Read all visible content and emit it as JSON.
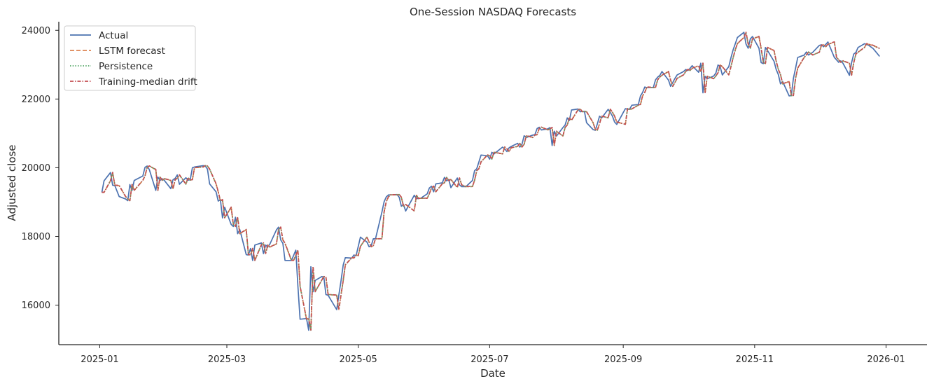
{
  "chart_data": {
    "type": "line",
    "title": "One-Session NASDAQ Forecasts",
    "xlabel": "Date",
    "ylabel": "Adjusted close",
    "x_ticks": [
      "2025-01",
      "2025-03",
      "2025-05",
      "2025-07",
      "2025-09",
      "2025-11",
      "2026-01"
    ],
    "y_ticks": [
      "16000",
      "18000",
      "20000",
      "22000",
      "24000"
    ],
    "xlim": [
      "2024-12-13",
      "2026-01-20"
    ],
    "ylim": [
      14850,
      24250
    ],
    "grid": false,
    "legend_position": "top-left",
    "series": [
      {
        "name": "Actual",
        "color": "#4c72b0",
        "dash": "solid"
      },
      {
        "name": "LSTM forecast",
        "color": "#dd8452",
        "dash": "dashed"
      },
      {
        "name": "Persistence",
        "color": "#55a868",
        "dash": "dotted"
      },
      {
        "name": "Training-median drift",
        "color": "#c44e52",
        "dash": "dashdot"
      }
    ],
    "x": [
      "2025-01-02",
      "2025-01-03",
      "2025-01-06",
      "2025-01-07",
      "2025-01-08",
      "2025-01-10",
      "2025-01-13",
      "2025-01-14",
      "2025-01-15",
      "2025-01-16",
      "2025-01-17",
      "2025-01-21",
      "2025-01-22",
      "2025-01-23",
      "2025-01-24",
      "2025-01-27",
      "2025-01-28",
      "2025-01-29",
      "2025-01-30",
      "2025-01-31",
      "2025-02-03",
      "2025-02-04",
      "2025-02-05",
      "2025-02-06",
      "2025-02-07",
      "2025-02-10",
      "2025-02-11",
      "2025-02-12",
      "2025-02-13",
      "2025-02-14",
      "2025-02-18",
      "2025-02-19",
      "2025-02-20",
      "2025-02-21",
      "2025-02-24",
      "2025-02-25",
      "2025-02-26",
      "2025-02-27",
      "2025-02-28",
      "2025-03-03",
      "2025-03-04",
      "2025-03-05",
      "2025-03-06",
      "2025-03-07",
      "2025-03-10",
      "2025-03-11",
      "2025-03-12",
      "2025-03-13",
      "2025-03-14",
      "2025-03-17",
      "2025-03-18",
      "2025-03-19",
      "2025-03-20",
      "2025-03-21",
      "2025-03-24",
      "2025-03-25",
      "2025-03-26",
      "2025-03-27",
      "2025-03-28",
      "2025-03-31",
      "2025-04-01",
      "2025-04-02",
      "2025-04-03",
      "2025-04-04",
      "2025-04-07",
      "2025-04-08",
      "2025-04-09",
      "2025-04-10",
      "2025-04-11",
      "2025-04-14",
      "2025-04-15",
      "2025-04-16",
      "2025-04-17",
      "2025-04-21",
      "2025-04-22",
      "2025-04-23",
      "2025-04-24",
      "2025-04-25",
      "2025-04-28",
      "2025-04-29",
      "2025-04-30",
      "2025-05-01",
      "2025-05-02",
      "2025-05-05",
      "2025-05-06",
      "2025-05-07",
      "2025-05-08",
      "2025-05-09",
      "2025-05-12",
      "2025-05-13",
      "2025-05-14",
      "2025-05-15",
      "2025-05-16",
      "2025-05-19",
      "2025-05-20",
      "2025-05-21",
      "2025-05-22",
      "2025-05-23",
      "2025-05-27",
      "2025-05-28",
      "2025-05-29",
      "2025-05-30",
      "2025-06-02",
      "2025-06-03",
      "2025-06-04",
      "2025-06-05",
      "2025-06-06",
      "2025-06-09",
      "2025-06-10",
      "2025-06-11",
      "2025-06-12",
      "2025-06-13",
      "2025-06-16",
      "2025-06-17",
      "2025-06-18",
      "2025-06-20",
      "2025-06-23",
      "2025-06-24",
      "2025-06-25",
      "2025-06-26",
      "2025-06-27",
      "2025-06-30",
      "2025-07-01",
      "2025-07-02",
      "2025-07-03",
      "2025-07-07",
      "2025-07-08",
      "2025-07-09",
      "2025-07-10",
      "2025-07-11",
      "2025-07-14",
      "2025-07-15",
      "2025-07-16",
      "2025-07-17",
      "2025-07-18",
      "2025-07-21",
      "2025-07-22",
      "2025-07-23",
      "2025-07-24",
      "2025-07-25",
      "2025-07-28",
      "2025-07-29",
      "2025-07-30",
      "2025-07-31",
      "2025-08-01",
      "2025-08-04",
      "2025-08-05",
      "2025-08-06",
      "2025-08-07",
      "2025-08-08",
      "2025-08-11",
      "2025-08-12",
      "2025-08-13",
      "2025-08-14",
      "2025-08-15",
      "2025-08-18",
      "2025-08-19",
      "2025-08-20",
      "2025-08-21",
      "2025-08-22",
      "2025-08-25",
      "2025-08-26",
      "2025-08-27",
      "2025-08-28",
      "2025-08-29",
      "2025-09-02",
      "2025-09-03",
      "2025-09-04",
      "2025-09-05",
      "2025-09-08",
      "2025-09-09",
      "2025-09-10",
      "2025-09-11",
      "2025-09-12",
      "2025-09-15",
      "2025-09-16",
      "2025-09-17",
      "2025-09-18",
      "2025-09-19",
      "2025-09-22",
      "2025-09-23",
      "2025-09-24",
      "2025-09-25",
      "2025-09-26",
      "2025-09-29",
      "2025-09-30",
      "2025-10-01",
      "2025-10-02",
      "2025-10-03",
      "2025-10-06",
      "2025-10-07",
      "2025-10-08",
      "2025-10-09",
      "2025-10-10",
      "2025-10-13",
      "2025-10-14",
      "2025-10-15",
      "2025-10-16",
      "2025-10-17",
      "2025-10-20",
      "2025-10-21",
      "2025-10-22",
      "2025-10-23",
      "2025-10-24",
      "2025-10-27",
      "2025-10-28",
      "2025-10-29",
      "2025-10-30",
      "2025-10-31",
      "2025-11-03",
      "2025-11-04",
      "2025-11-05",
      "2025-11-06",
      "2025-11-07",
      "2025-11-10",
      "2025-11-11",
      "2025-11-12",
      "2025-11-13",
      "2025-11-14",
      "2025-11-17",
      "2025-11-18",
      "2025-11-19",
      "2025-11-20",
      "2025-11-21",
      "2025-11-24",
      "2025-11-25",
      "2025-11-26",
      "2025-11-28",
      "2025-12-01",
      "2025-12-02",
      "2025-12-03",
      "2025-12-04",
      "2025-12-05",
      "2025-12-08",
      "2025-12-09",
      "2025-12-10",
      "2025-12-11",
      "2025-12-12",
      "2025-12-15",
      "2025-12-16",
      "2025-12-17",
      "2025-12-18",
      "2025-12-19",
      "2025-12-22",
      "2025-12-23",
      "2025-12-24",
      "2025-12-26",
      "2025-12-29",
      "2025-12-30",
      "2025-12-31"
    ],
    "actual": [
      19280,
      19620,
      19860,
      19490,
      19480,
      19160,
      19090,
      19040,
      19510,
      19340,
      19630,
      19760,
      20010,
      20050,
      19950,
      19340,
      19730,
      19630,
      19680,
      19630,
      19390,
      19650,
      19690,
      19790,
      19520,
      19710,
      19640,
      19650,
      20000,
      20020,
      20060,
      20050,
      19960,
      19530,
      19300,
      19030,
      19070,
      18540,
      18850,
      18350,
      18290,
      18560,
      18080,
      18200,
      17470,
      17460,
      17650,
      17300,
      17750,
      17810,
      17500,
      17750,
      17690,
      17780,
      18190,
      18270,
      17900,
      17800,
      17300,
      17300,
      17450,
      17600,
      16550,
      15590,
      15610,
      15270,
      17120,
      16390,
      16720,
      16830,
      16820,
      16310,
      16290,
      15870,
      16300,
      16710,
      17170,
      17380,
      17370,
      17460,
      17440,
      17710,
      17980,
      17840,
      17700,
      17730,
      17930,
      17930,
      18710,
      19010,
      19150,
      19210,
      19210,
      19220,
      19140,
      18880,
      18930,
      18740,
      19200,
      19100,
      19110,
      19110,
      19240,
      19410,
      19460,
      19300,
      19530,
      19560,
      19720,
      19620,
      19660,
      19420,
      19700,
      19500,
      19450,
      19450,
      19630,
      19910,
      19970,
      20170,
      20370,
      20350,
      20250,
      20450,
      20400,
      20600,
      20550,
      20470,
      20580,
      20620,
      20710,
      20600,
      20680,
      20930,
      20880,
      20950,
      20960,
      21140,
      21180,
      21100,
      21130,
      21170,
      20650,
      21060,
      20920,
      21170,
      21240,
      21450,
      21380,
      21680,
      21710,
      21630,
      21640,
      21630,
      21310,
      21110,
      21090,
      21280,
      21500,
      21450,
      21700,
      21610,
      21500,
      21330,
      21260,
      21720,
      21700,
      21710,
      21820,
      21840,
      22090,
      22190,
      22350,
      22330,
      22340,
      22560,
      22640,
      22690,
      22800,
      22550,
      22370,
      22480,
      22600,
      22700,
      22800,
      22860,
      22830,
      22890,
      22970,
      22780,
      23040,
      22180,
      22660,
      22590,
      22670,
      22760,
      22990,
      22940,
      22700,
      22940,
      23200,
      23430,
      23610,
      23790,
      23940,
      23600,
      23480,
      23750,
      23820,
      23480,
      23060,
      23030,
      23500,
      23410,
      23100,
      22860,
      22710,
      22440,
      22510,
      22090,
      22100,
      22600,
      22900,
      23210,
      23280,
      23370,
      23280,
      23360,
      23560,
      23580,
      23520,
      23590,
      23660,
      23210,
      23140,
      23070,
      23110,
      23040,
      22690,
      23060,
      23310,
      23360,
      23500,
      23610,
      23590,
      23560,
      23470,
      23240
    ]
  }
}
